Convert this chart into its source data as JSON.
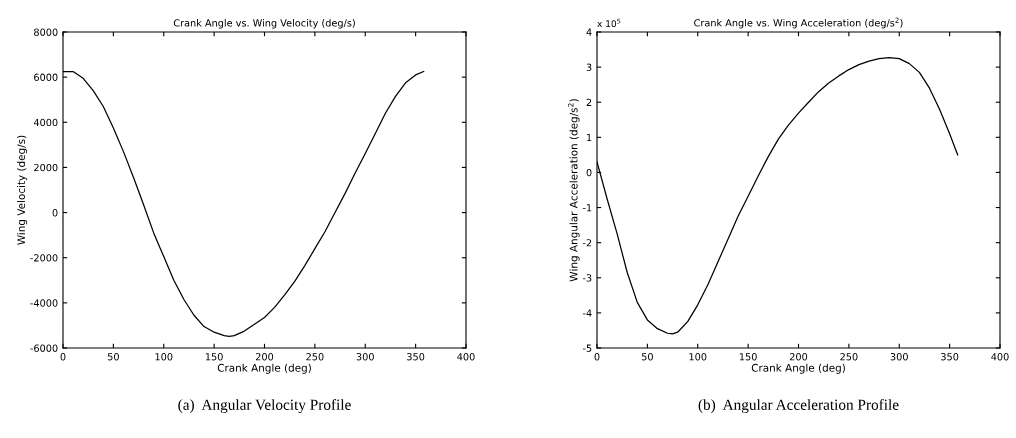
{
  "chart_data": [
    {
      "type": "line",
      "title": "Crank Angle vs. Wing Velocity (deg/s)",
      "xlabel": "Crank Angle (deg)",
      "ylabel": "Wing Velocity (deg/s)",
      "x": [
        0,
        10,
        20,
        30,
        40,
        50,
        60,
        70,
        80,
        90,
        100,
        110,
        120,
        130,
        140,
        150,
        160,
        165,
        170,
        180,
        190,
        200,
        210,
        220,
        230,
        240,
        250,
        260,
        270,
        280,
        290,
        300,
        310,
        320,
        330,
        340,
        350,
        358
      ],
      "series": [
        {
          "color": "#000000",
          "values": [
            6250,
            6250,
            5950,
            5400,
            4700,
            3750,
            2700,
            1550,
            350,
            -900,
            -1950,
            -3000,
            -3850,
            -4550,
            -5050,
            -5300,
            -5450,
            -5480,
            -5450,
            -5250,
            -4950,
            -4650,
            -4200,
            -3650,
            -3050,
            -2350,
            -1600,
            -850,
            0,
            850,
            1750,
            2620,
            3500,
            4400,
            5150,
            5750,
            6100,
            6250
          ]
        }
      ],
      "xlim": [
        0,
        400
      ],
      "xticks": [
        0,
        50,
        100,
        150,
        200,
        250,
        300,
        350,
        400
      ],
      "ylim": [
        -6000,
        8000
      ],
      "yticks": [
        -6000,
        -4000,
        -2000,
        0,
        2000,
        4000,
        6000,
        8000
      ],
      "grid": false,
      "line_style": "solid",
      "marker": "none",
      "annotations": [
        "(a)  Angular Velocity Profile"
      ]
    },
    {
      "type": "line",
      "title": "Crank Angle vs. Wing Acceleration (deg/s$^{2}$)",
      "xlabel": "Crank Angle (deg)",
      "ylabel": "Wing Angular Acceleration (deg/s$^{2}$)",
      "x": [
        0,
        10,
        20,
        30,
        40,
        50,
        60,
        70,
        75,
        80,
        90,
        100,
        110,
        120,
        130,
        140,
        150,
        160,
        170,
        180,
        190,
        200,
        210,
        220,
        230,
        240,
        250,
        260,
        270,
        280,
        290,
        300,
        310,
        320,
        330,
        340,
        350,
        358
      ],
      "series": [
        {
          "color": "#000000",
          "values": [
            0.3,
            -0.75,
            -1.75,
            -2.85,
            -3.7,
            -4.2,
            -4.45,
            -4.58,
            -4.6,
            -4.55,
            -4.25,
            -3.77,
            -3.2,
            -2.55,
            -1.9,
            -1.25,
            -0.68,
            -0.1,
            0.45,
            0.95,
            1.35,
            1.69,
            2.0,
            2.3,
            2.55,
            2.75,
            2.93,
            3.07,
            3.17,
            3.24,
            3.27,
            3.24,
            3.1,
            2.85,
            2.4,
            1.8,
            1.1,
            0.5
          ]
        }
      ],
      "xlim": [
        0,
        400
      ],
      "xticks": [
        0,
        50,
        100,
        150,
        200,
        250,
        300,
        350,
        400
      ],
      "ylim": [
        -5,
        4
      ],
      "yticks": [
        -5,
        -4,
        -3,
        -2,
        -1,
        0,
        1,
        2,
        3,
        4
      ],
      "grid": false,
      "line_style": "solid",
      "marker": "none",
      "annotations": [
        "x 10$^{5}$",
        "(b)  Angular Acceleration Profile"
      ]
    }
  ]
}
